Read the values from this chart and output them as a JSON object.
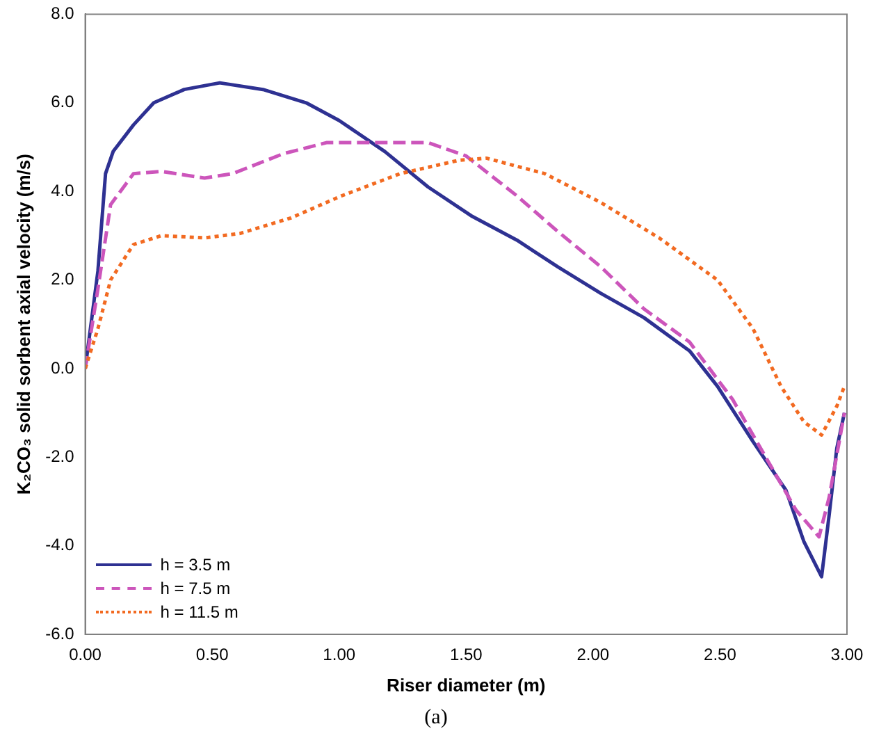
{
  "chart_data": {
    "type": "line",
    "xlabel": "Riser diameter (m)",
    "ylabel": "K₂CO₃ solid sorbent axial velocity (m/s)",
    "annotations": [
      "(a)"
    ],
    "xlim": [
      0,
      3
    ],
    "xticks": [
      {
        "value": 0,
        "label": "0.00"
      },
      {
        "value": 0.5,
        "label": "0.50"
      },
      {
        "value": 1,
        "label": "1.00"
      },
      {
        "value": 1.5,
        "label": "1.50"
      },
      {
        "value": 2,
        "label": "2.00"
      },
      {
        "value": 2.5,
        "label": "2.50"
      },
      {
        "value": 3,
        "label": "3.00"
      }
    ],
    "ylim": [
      -6,
      8
    ],
    "yticks": [
      {
        "value": -6,
        "label": "-6.0"
      },
      {
        "value": -4,
        "label": "-4.0"
      },
      {
        "value": -2,
        "label": "-2.0"
      },
      {
        "value": 0,
        "label": "0.0"
      },
      {
        "value": 2,
        "label": "2.0"
      },
      {
        "value": 4,
        "label": "4.0"
      },
      {
        "value": 6,
        "label": "6.0"
      },
      {
        "value": 8,
        "label": "8.0"
      }
    ],
    "grid": false,
    "legend": "bottom left",
    "marker": "none",
    "series": [
      {
        "name": "h = 3.5 m",
        "color": "#2e3192",
        "line_style": "solid",
        "x": [
          0,
          0.05,
          0.08,
          0.11,
          0.19,
          0.27,
          0.39,
          0.53,
          0.7,
          0.87,
          1.0,
          1.18,
          1.35,
          1.52,
          1.7,
          1.86,
          2.03,
          2.2,
          2.38,
          2.49,
          2.63,
          2.76,
          2.83,
          2.9,
          2.93,
          2.96,
          2.99
        ],
        "values": [
          0,
          2.2,
          4.4,
          4.9,
          5.5,
          6.0,
          6.3,
          6.45,
          6.3,
          6.0,
          5.6,
          4.9,
          4.1,
          3.45,
          2.9,
          2.3,
          1.7,
          1.15,
          0.4,
          -0.4,
          -1.65,
          -2.75,
          -3.9,
          -4.7,
          -3.3,
          -1.8,
          -1.0
        ]
      },
      {
        "name": "h = 7.5 m",
        "color": "#cc55bb",
        "line_style": "dashed",
        "x": [
          0,
          0.05,
          0.1,
          0.19,
          0.3,
          0.47,
          0.58,
          0.78,
          0.95,
          1.18,
          1.35,
          1.5,
          1.7,
          1.86,
          2.03,
          2.2,
          2.38,
          2.55,
          2.69,
          2.8,
          2.89,
          2.93,
          2.99
        ],
        "values": [
          0,
          1.8,
          3.7,
          4.4,
          4.45,
          4.3,
          4.4,
          4.85,
          5.1,
          5.1,
          5.1,
          4.8,
          3.9,
          3.1,
          2.3,
          1.35,
          0.6,
          -0.7,
          -2.1,
          -3.2,
          -3.8,
          -2.9,
          -1.0
        ]
      },
      {
        "name": "h = 11.5 m",
        "color": "#f26a21",
        "line_style": "dotted",
        "x": [
          0,
          0.05,
          0.1,
          0.19,
          0.3,
          0.47,
          0.61,
          0.81,
          1.01,
          1.24,
          1.47,
          1.58,
          1.81,
          2.03,
          2.26,
          2.49,
          2.63,
          2.74,
          2.83,
          2.9,
          2.96,
          2.99
        ],
        "values": [
          0,
          0.9,
          2.0,
          2.8,
          3.0,
          2.95,
          3.05,
          3.4,
          3.9,
          4.4,
          4.7,
          4.75,
          4.4,
          3.75,
          2.95,
          2.0,
          0.9,
          -0.4,
          -1.2,
          -1.5,
          -0.85,
          -0.4
        ]
      }
    ]
  }
}
